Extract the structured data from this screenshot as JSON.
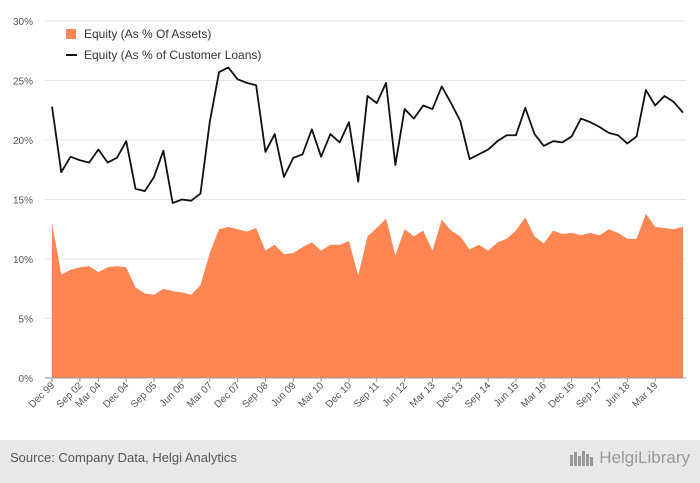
{
  "chart_data": {
    "type": "area+line",
    "ylim": [
      0,
      30
    ],
    "yticks": [
      "0%",
      "5%",
      "10%",
      "15%",
      "20%",
      "25%",
      "30%"
    ],
    "ytick_values": [
      0,
      5,
      10,
      15,
      20,
      25,
      30
    ],
    "x_start_quarter": "Dec 99",
    "xtick_labels": [
      "Dec 99",
      "Sep 02",
      "Mar 04",
      "Dec 04",
      "Sep 05",
      "Jun 06",
      "Mar 07",
      "Dec 07",
      "Sep 08",
      "Jun 09",
      "Mar 10",
      "Dec 10",
      "Sep 11",
      "Jun 12",
      "Mar 13",
      "Dec 13",
      "Sep 14",
      "Jun 15",
      "Mar 16",
      "Dec 16",
      "Sep 17",
      "Jun 18",
      "Mar 19"
    ],
    "xtick_indices": [
      0,
      3,
      5,
      8,
      11,
      14,
      17,
      20,
      23,
      26,
      29,
      32,
      35,
      38,
      41,
      44,
      47,
      50,
      53,
      56,
      59,
      62,
      65
    ],
    "grid": true,
    "legend_position": "top-left",
    "series": [
      {
        "name": "Equity (As % Of Assets)",
        "type": "area",
        "color": "#ff8552",
        "values": [
          13.0,
          8.7,
          9.1,
          9.3,
          9.4,
          8.9,
          9.3,
          9.4,
          9.3,
          7.6,
          7.1,
          7.0,
          7.5,
          7.3,
          7.2,
          7.0,
          7.8,
          10.5,
          12.5,
          12.7,
          12.5,
          12.3,
          12.6,
          10.7,
          11.2,
          10.4,
          10.5,
          11.0,
          11.4,
          10.7,
          11.2,
          11.2,
          11.5,
          8.6,
          11.9,
          12.6,
          13.4,
          10.3,
          12.5,
          11.9,
          12.4,
          10.7,
          13.3,
          12.4,
          11.9,
          10.8,
          11.2,
          10.7,
          11.4,
          11.7,
          12.4,
          13.5,
          11.9,
          11.3,
          12.4,
          12.1,
          12.2,
          12.0,
          12.2,
          12.0,
          12.5,
          12.2,
          11.7,
          11.7,
          13.8,
          12.7,
          12.6,
          12.5,
          12.7
        ]
      },
      {
        "name": "Equity (As % of Customer Loans)",
        "type": "line",
        "color": "#111111",
        "values": [
          22.8,
          17.3,
          18.6,
          18.3,
          18.1,
          19.2,
          18.1,
          18.5,
          19.9,
          15.9,
          15.7,
          16.9,
          19.1,
          14.7,
          15.0,
          14.9,
          15.5,
          21.5,
          25.7,
          26.1,
          25.1,
          24.8,
          24.6,
          19.0,
          20.5,
          16.9,
          18.5,
          18.8,
          20.9,
          18.6,
          20.5,
          19.8,
          21.5,
          16.5,
          23.7,
          23.1,
          24.8,
          17.9,
          22.6,
          21.8,
          22.9,
          22.6,
          24.5,
          23.1,
          21.6,
          18.4,
          18.8,
          19.2,
          19.9,
          20.4,
          20.4,
          22.7,
          20.5,
          19.5,
          19.9,
          19.8,
          20.3,
          21.8,
          21.5,
          21.1,
          20.6,
          20.4,
          19.7,
          20.3,
          24.2,
          22.9,
          23.7,
          23.2,
          22.3
        ]
      }
    ]
  },
  "footer": {
    "source": "Source: Company Data, Helgi Analytics",
    "brand": "HelgiLibrary"
  }
}
